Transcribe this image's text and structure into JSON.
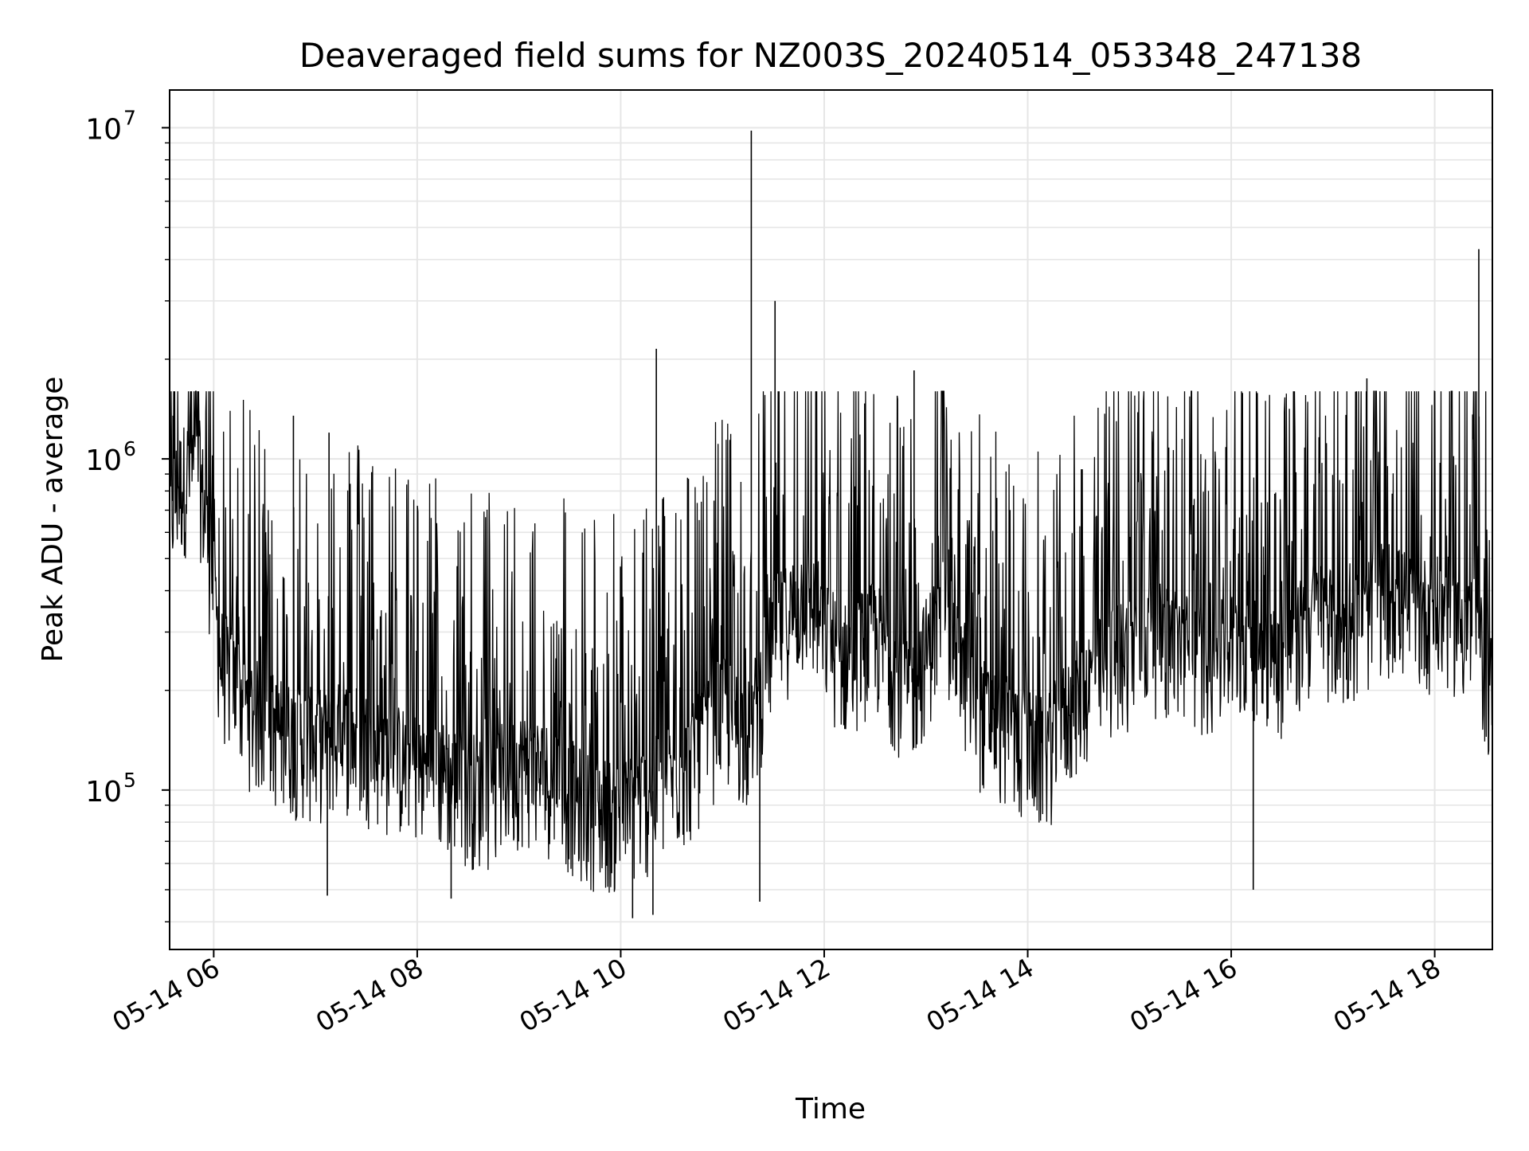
{
  "chart_data": {
    "type": "line",
    "title": "Deaveraged field sums for NZ003S_20240514_053348_247138",
    "xlabel": "Time",
    "ylabel": "Peak ADU - average",
    "xlim": [
      "2024-05-14 05:34",
      "2024-05-14 18:34"
    ],
    "ylim": [
      33000,
      13000000
    ],
    "yscale": "log",
    "grid": true,
    "x_ticks": [
      "05-14 06",
      "05-14 08",
      "05-14 10",
      "05-14 12",
      "05-14 14",
      "05-14 16",
      "05-14 18"
    ],
    "y_tick_exponents": [
      "5",
      "6",
      "7"
    ],
    "y_tick_base": "10",
    "line_color": "#000000",
    "series": [
      {
        "x": [
          "2024-05-14 05:34",
          "2024-05-14 05:40",
          "2024-05-14 05:46",
          "2024-05-14 05:52",
          "2024-05-14 05:58",
          "2024-05-14 06:04",
          "2024-05-14 06:20",
          "2024-05-14 06:40",
          "2024-05-14 07:00",
          "2024-05-14 07:20",
          "2024-05-14 07:40",
          "2024-05-14 08:00",
          "2024-05-14 08:20",
          "2024-05-14 08:40",
          "2024-05-14 09:00",
          "2024-05-14 09:20",
          "2024-05-14 09:40",
          "2024-05-14 10:00",
          "2024-05-14 10:20",
          "2024-05-14 10:40",
          "2024-05-14 11:00",
          "2024-05-14 11:16",
          "2024-05-14 11:30",
          "2024-05-14 11:50",
          "2024-05-14 12:10",
          "2024-05-14 12:30",
          "2024-05-14 12:50",
          "2024-05-14 13:10",
          "2024-05-14 13:30",
          "2024-05-14 13:50",
          "2024-05-14 14:10",
          "2024-05-14 14:30",
          "2024-05-14 14:50",
          "2024-05-14 15:10",
          "2024-05-14 15:30",
          "2024-05-14 15:50",
          "2024-05-14 16:10",
          "2024-05-14 16:30",
          "2024-05-14 16:50",
          "2024-05-14 17:10",
          "2024-05-14 17:30",
          "2024-05-14 17:50",
          "2024-05-14 18:10",
          "2024-05-14 18:25",
          "2024-05-14 18:34"
        ],
        "values": [
          700000,
          850000,
          950000,
          900000,
          500000,
          250000,
          180000,
          150000,
          140000,
          150000,
          130000,
          120000,
          110000,
          100000,
          120000,
          110000,
          90000,
          85000,
          100000,
          120000,
          180000,
          150000,
          300000,
          400000,
          250000,
          300000,
          200000,
          350000,
          180000,
          150000,
          130000,
          200000,
          250000,
          300000,
          280000,
          250000,
          300000,
          250000,
          350000,
          300000,
          400000,
          350000,
          350000,
          300000,
          200000
        ]
      }
    ],
    "spikes": [
      {
        "x": "2024-05-14 11:17",
        "y": 9800000
      },
      {
        "x": "2024-05-14 11:31",
        "y": 3000000
      },
      {
        "x": "2024-05-14 18:26",
        "y": 4300000
      },
      {
        "x": "2024-05-14 10:21",
        "y": 2150000
      },
      {
        "x": "2024-05-14 12:53",
        "y": 1850000
      },
      {
        "x": "2024-05-14 17:20",
        "y": 1750000
      },
      {
        "x": "2024-05-14 06:47",
        "y": 1350000
      },
      {
        "x": "2024-05-14 07:08",
        "y": 1200000
      },
      {
        "x": "2024-05-14 05:36",
        "y": 1350000
      }
    ],
    "dips": [
      {
        "x": "2024-05-14 10:07",
        "y": 41000
      },
      {
        "x": "2024-05-14 10:19",
        "y": 42000
      },
      {
        "x": "2024-05-14 11:22",
        "y": 46000
      },
      {
        "x": "2024-05-14 07:07",
        "y": 48000
      },
      {
        "x": "2024-05-14 08:20",
        "y": 47000
      },
      {
        "x": "2024-05-14 16:13",
        "y": 50000
      }
    ]
  }
}
